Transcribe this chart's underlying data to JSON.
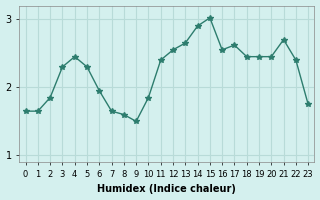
{
  "x": [
    0,
    1,
    2,
    3,
    4,
    5,
    6,
    7,
    8,
    9,
    10,
    11,
    12,
    13,
    14,
    15,
    16,
    17,
    18,
    19,
    20,
    21,
    22,
    23
  ],
  "y": [
    1.65,
    1.65,
    1.85,
    2.3,
    2.45,
    2.3,
    1.95,
    1.65,
    1.6,
    1.5,
    1.85,
    2.4,
    2.55,
    2.65,
    2.9,
    3.02,
    2.55,
    2.62,
    2.45,
    2.45,
    2.45,
    2.7,
    2.4,
    1.75
  ],
  "xlabel": "Humidex (Indice chaleur)",
  "ylabel": "",
  "line_color": "#2d7d6e",
  "marker": "*",
  "marker_size": 4,
  "bg_color": "#d4f0ee",
  "grid_color": "#b8dbd8",
  "yticks": [
    1,
    2,
    3
  ],
  "ylim": [
    0.9,
    3.2
  ],
  "xlim": [
    -0.5,
    23.5
  ]
}
